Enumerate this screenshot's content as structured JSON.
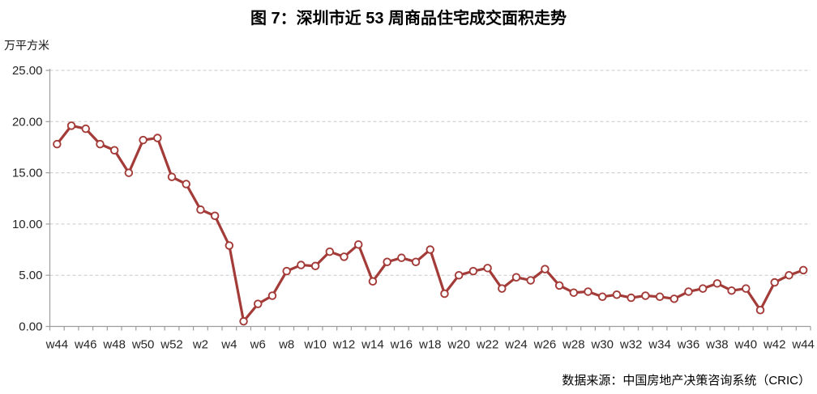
{
  "figure": {
    "title": "图 7：深圳市近 53 周商品住宅成交面积走势",
    "source": "数据来源：中国房地产决策咨询系统（CRIC）"
  },
  "chart_data": {
    "type": "line",
    "title": "图 7：深圳市近 53 周商品住宅成交面积走势",
    "ylabel": "万平方米",
    "xlabel": "",
    "x": [
      "w44",
      "w45",
      "w46",
      "w47",
      "w48",
      "w49",
      "w50",
      "w51",
      "w52",
      "w1",
      "w2",
      "w3",
      "w4",
      "w5",
      "w6",
      "w7",
      "w8",
      "w9",
      "w10",
      "w11",
      "w12",
      "w13",
      "w14",
      "w15",
      "w16",
      "w17",
      "w18",
      "w19",
      "w20",
      "w21",
      "w22",
      "w23",
      "w24",
      "w25",
      "w26",
      "w27",
      "w28",
      "w29",
      "w30",
      "w31",
      "w32",
      "w33",
      "w34",
      "w35",
      "w36",
      "w37",
      "w38",
      "w39",
      "w40",
      "w41",
      "w42",
      "w43",
      "w44"
    ],
    "values": [
      17.8,
      19.6,
      19.3,
      17.8,
      17.2,
      15.0,
      18.2,
      18.4,
      14.6,
      13.9,
      11.4,
      10.8,
      7.9,
      0.5,
      2.2,
      3.0,
      5.4,
      6.0,
      5.9,
      7.3,
      6.8,
      8.0,
      4.4,
      6.3,
      6.7,
      6.3,
      7.5,
      3.2,
      5.0,
      5.4,
      5.7,
      3.7,
      4.8,
      4.5,
      5.6,
      4.0,
      3.3,
      3.4,
      2.9,
      3.1,
      2.8,
      3.0,
      2.9,
      2.7,
      3.4,
      3.7,
      4.2,
      3.5,
      3.7,
      1.6,
      4.3,
      5.0,
      5.5
    ],
    "x_tick_labels": [
      "w44",
      "w46",
      "w48",
      "w50",
      "w52",
      "w2",
      "w4",
      "w6",
      "w8",
      "w10",
      "w12",
      "w14",
      "w16",
      "w18",
      "w20",
      "w22",
      "w24",
      "w26",
      "w28",
      "w30",
      "w32",
      "w34",
      "w36",
      "w38",
      "w40",
      "w42",
      "w44"
    ],
    "ylim": [
      0,
      25
    ],
    "y_ticks": [
      0,
      5,
      10,
      15,
      20,
      25
    ],
    "y_tick_decimals": 2,
    "grid": "horizontal-dashed",
    "legend": "none",
    "line_color": "#A33B38",
    "marker_fill": "#FFFFFF",
    "grid_color": "#C9C9C9",
    "axis_color": "#9D9D9D"
  }
}
